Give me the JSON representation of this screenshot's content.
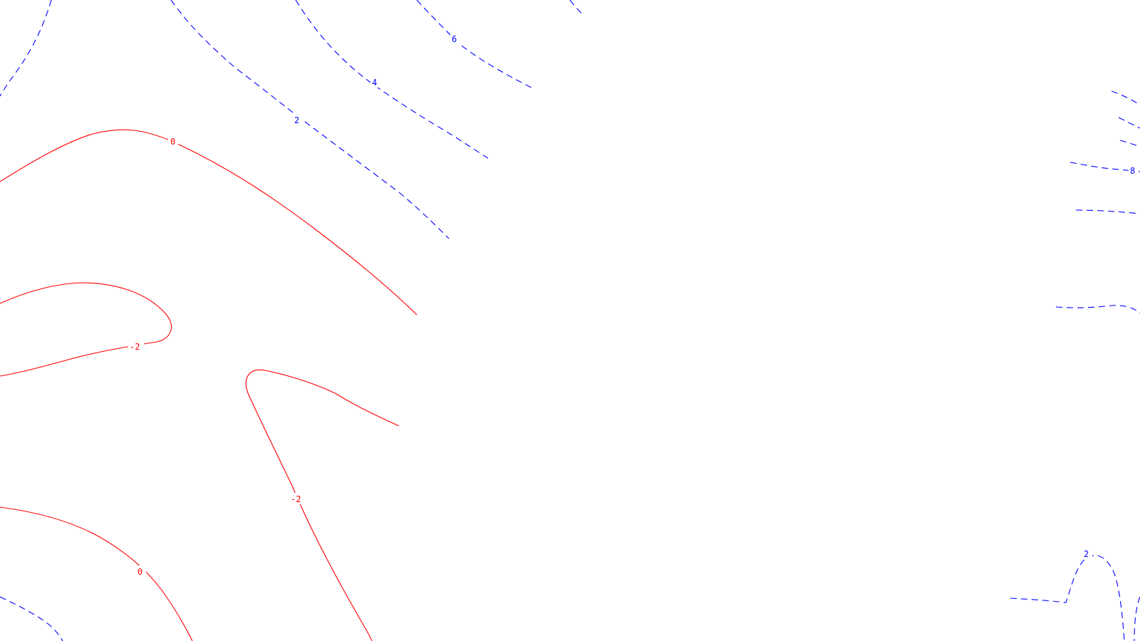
{
  "map": {
    "type": "contour",
    "colors": {
      "negative_and_zero": "#ff0000",
      "positive": "#0000ff"
    },
    "line_styles": {
      "negative_and_zero": "solid",
      "positive": "dashed"
    },
    "contour_labels": {
      "zero_upper": "0",
      "zero_lower": "0",
      "neg_left": "-2",
      "neg_center": "-2",
      "pos_2_upper": "2",
      "pos_4_upper": "4",
      "pos_6_upper": "6",
      "pos_8_right": "8",
      "pos_2_lower_right": "2"
    }
  }
}
